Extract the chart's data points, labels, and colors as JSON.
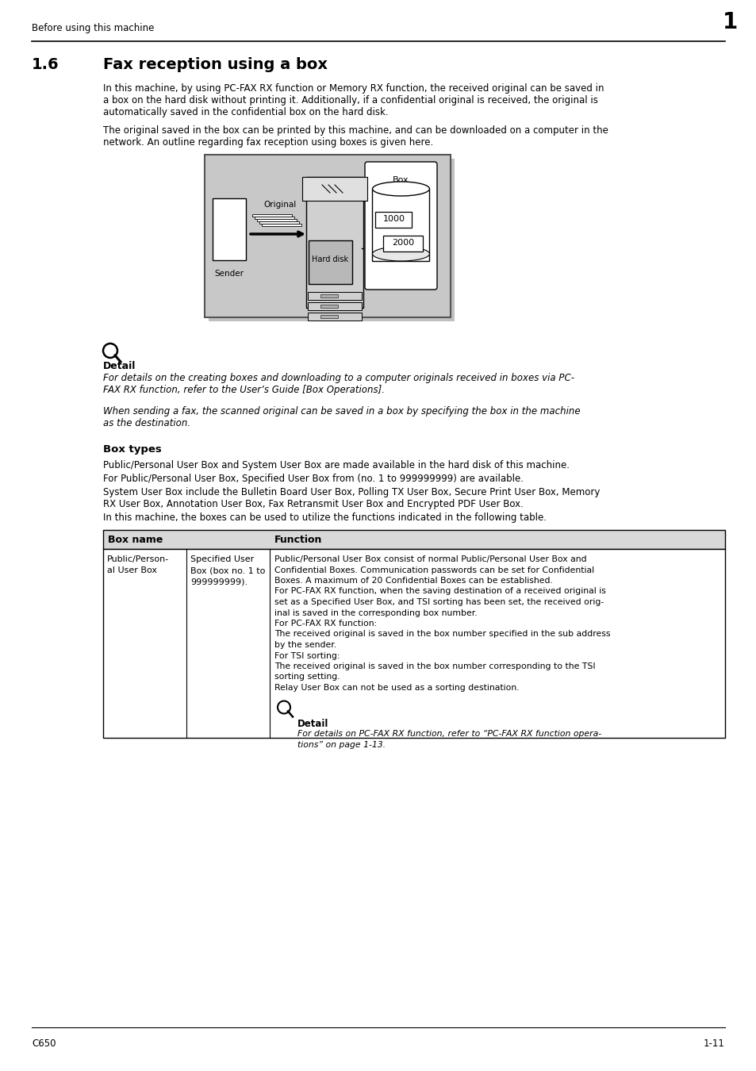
{
  "page_bg": "#ffffff",
  "header_text": "Before using this machine",
  "header_tab_text": "1",
  "section_number": "1.6",
  "section_title": "Fax reception using a box",
  "para1": "In this machine, by using PC-FAX RX function or Memory RX function, the received original can be saved in\na box on the hard disk without printing it. Additionally, if a confidential original is received, the original is\nautomatically saved in the confidential box on the hard disk.",
  "para2": "The original saved in the box can be printed by this machine, and can be downloaded on a computer in the\nnetwork. An outline regarding fax reception using boxes is given here.",
  "detail_label": "Detail",
  "detail_italic1": "For details on the creating boxes and downloading to a computer originals received in boxes via PC-\nFAX RX function, refer to the User’s Guide [Box Operations].",
  "detail_italic2": "When sending a fax, the scanned original can be saved in a box by specifying the box in the machine\nas the destination.",
  "boxtypes_title": "Box types",
  "boxtypes_para1": "Public/Personal User Box and System User Box are made available in the hard disk of this machine.",
  "boxtypes_para2": "For Public/Personal User Box, Specified User Box from (no. 1 to 999999999) are available.",
  "boxtypes_para3": "System User Box include the Bulletin Board User Box, Polling TX User Box, Secure Print User Box, Memory\nRX User Box, Annotation User Box, Fax Retransmit User Box and Encrypted PDF User Box.",
  "boxtypes_para4": "In this machine, the boxes can be used to utilize the functions indicated in the following table.",
  "table_header_col1": "Box name",
  "table_header_col2": "Function",
  "table_col1_row1a": "Public/Person-\nal User Box",
  "table_col1_row1b": "Specified User\nBox (box no. 1 to\n999999999).",
  "table_col2_row1": "Public/Personal User Box consist of normal Public/Personal User Box and\nConfidential Boxes. Communication passwords can be set for Confidential\nBoxes. A maximum of 20 Confidential Boxes can be established.\nFor PC-FAX RX function, when the saving destination of a received original is\nset as a Specified User Box, and TSI sorting has been set, the received orig-\ninal is saved in the corresponding box number.\nFor PC-FAX RX function:\nThe received original is saved in the box number specified in the sub address\nby the sender.\nFor TSI sorting:\nThe received original is saved in the box number corresponding to the TSI\nsorting setting.\nRelay User Box can not be used as a sorting destination.",
  "table_detail_label": "Detail",
  "table_detail_italic": "For details on PC-FAX RX function, refer to “PC-FAX RX function opera-\ntions” on page 1-13.",
  "footer_left": "C650",
  "footer_right": "1-11"
}
